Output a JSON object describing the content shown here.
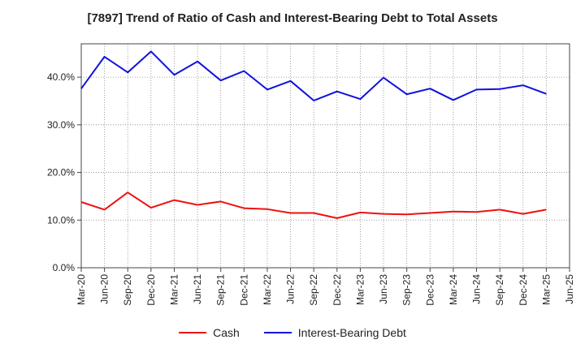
{
  "chart_data": {
    "type": "line",
    "title": "[7897]  Trend of Ratio of Cash and Interest-Bearing Debt to Total Assets",
    "categories": [
      "Mar-20",
      "Jun-20",
      "Sep-20",
      "Dec-20",
      "Mar-21",
      "Jun-21",
      "Sep-21",
      "Dec-21",
      "Mar-22",
      "Jun-22",
      "Sep-22",
      "Dec-22",
      "Mar-23",
      "Jun-23",
      "Sep-23",
      "Dec-23",
      "Mar-24",
      "Jun-24",
      "Sep-24",
      "Dec-24",
      "Mar-25",
      "Jun-25"
    ],
    "series": [
      {
        "name": "Cash",
        "color": "#ee1111",
        "values": [
          13.8,
          12.2,
          15.8,
          12.6,
          14.2,
          13.2,
          13.9,
          12.5,
          12.3,
          11.5,
          11.5,
          10.4,
          11.6,
          11.3,
          11.2,
          11.5,
          11.8,
          11.7,
          12.2,
          11.3,
          12.2,
          null
        ]
      },
      {
        "name": "Interest-Bearing Debt",
        "color": "#1111dd",
        "values": [
          37.6,
          44.3,
          41.0,
          45.4,
          40.5,
          43.3,
          39.3,
          41.3,
          37.4,
          39.2,
          35.1,
          37.0,
          35.4,
          39.9,
          36.4,
          37.6,
          35.2,
          37.4,
          37.5,
          38.3,
          36.5,
          null
        ]
      }
    ],
    "ylim": [
      0,
      47
    ],
    "yticks": [
      0,
      10,
      20,
      30,
      40
    ],
    "ytick_labels": [
      "0.0%",
      "10.0%",
      "20.0%",
      "30.0%",
      "40.0%"
    ],
    "grid": true,
    "legend_position": "bottom-center"
  }
}
